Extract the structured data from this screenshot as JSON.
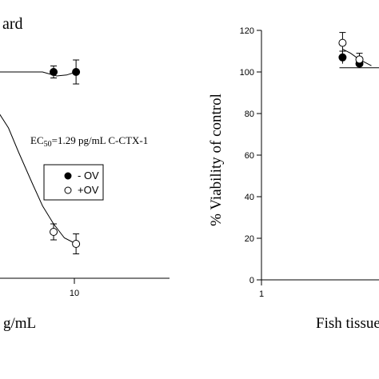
{
  "chart_data": [
    {
      "type": "scatter",
      "title": "ard",
      "x_scale": "log",
      "xlabel": "g/mL",
      "xticks": [
        "10"
      ],
      "annotation": {
        "prefix": "EC",
        "subscript": "50",
        "suffix": "=1.29 pg/mL C-CTX-1"
      },
      "legend": {
        "placement": "center-left",
        "entries": [
          "- OV",
          "+OV"
        ]
      },
      "series": [
        {
          "name": "- OV",
          "marker": "filled-circle",
          "points": [
            {
              "x": 5.5,
              "y": 1.0,
              "err": 0.03
            },
            {
              "x": 10.5,
              "y": 1.0,
              "err": 0.06
            }
          ]
        },
        {
          "name": "+OV",
          "marker": "open-circle",
          "points": [
            {
              "x": 5.5,
              "y": 0.2,
              "err": 0.04
            },
            {
              "x": 10.5,
              "y": 0.14,
              "err": 0.05
            }
          ]
        }
      ],
      "fits": [
        {
          "series": "- OV",
          "points": [
            [
              0.5,
              1.0
            ],
            [
              1,
              1.0
            ],
            [
              2,
              1.0
            ],
            [
              4,
              1.0
            ],
            [
              6,
              0.98
            ],
            [
              8,
              0.985
            ],
            [
              10.5,
              1.0
            ]
          ]
        },
        {
          "series": "+OV",
          "points": [
            [
              0.5,
              0.92
            ],
            [
              1.0,
              0.83
            ],
            [
              1.5,
              0.72
            ],
            [
              2.0,
              0.6
            ],
            [
              3.0,
              0.44
            ],
            [
              4.0,
              0.33
            ],
            [
              5.5,
              0.24
            ],
            [
              7.5,
              0.17
            ],
            [
              10.5,
              0.14
            ]
          ]
        }
      ]
    },
    {
      "type": "scatter",
      "ylabel": "% Viability of control",
      "xlabel": "Fish tissue",
      "x_scale": "log",
      "xticks": [
        "1"
      ],
      "yticks": [
        0,
        20,
        40,
        60,
        80,
        100,
        120
      ],
      "ylim": [
        0,
        120
      ],
      "series": [
        {
          "name": "- OV",
          "marker": "filled-circle",
          "points": [
            {
              "x": 7,
              "y": 107,
              "err": 3
            },
            {
              "x": 10.5,
              "y": 104,
              "err": 2
            }
          ]
        },
        {
          "name": "+OV",
          "marker": "open-circle",
          "points": [
            {
              "x": 7,
              "y": 114,
              "err": 5
            },
            {
              "x": 10.5,
              "y": 106,
              "err": 3
            }
          ]
        }
      ],
      "fits": [
        {
          "series": "+OV",
          "points": [
            [
              7,
              111
            ],
            [
              8.5,
              109
            ],
            [
              10.5,
              106
            ],
            [
              14,
              103
            ]
          ]
        }
      ],
      "reference_line": {
        "y": 102,
        "x_start": 6.5
      }
    }
  ]
}
